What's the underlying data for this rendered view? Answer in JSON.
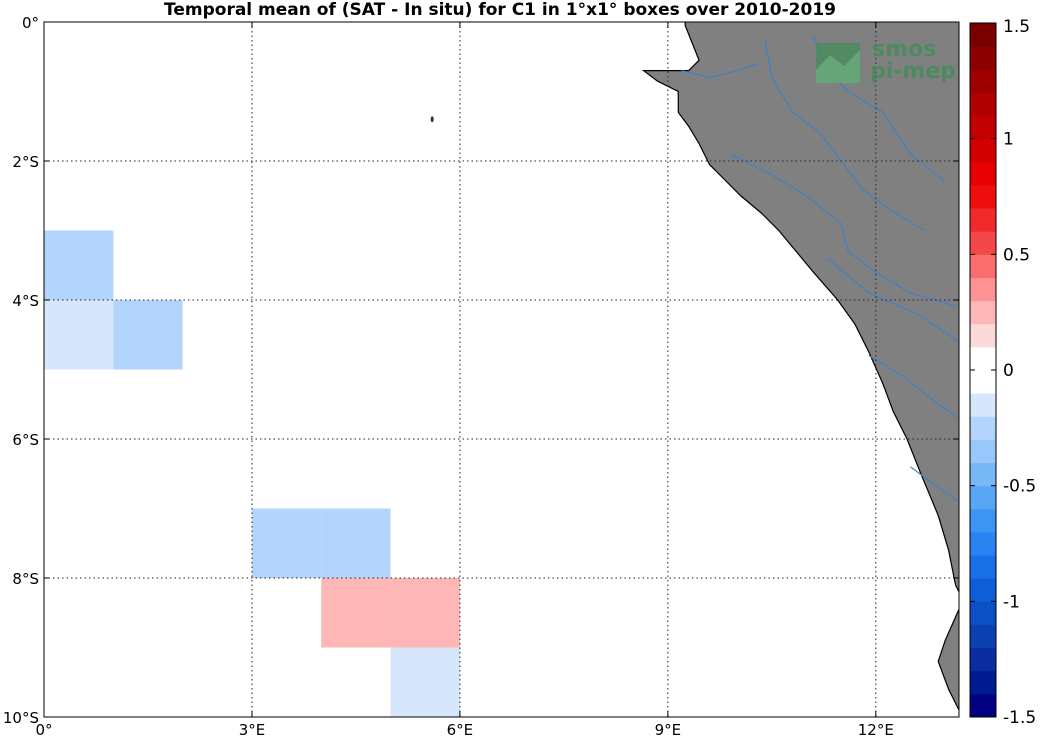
{
  "title": "Temporal mean of (SAT - In situ) for C1 in 1°x1° boxes over 2010-2019",
  "map": {
    "lon_range": [
      0,
      13.2
    ],
    "lat_range": [
      0,
      -10
    ],
    "x_tick_labels": [
      {
        "lon": 0,
        "label": "0°"
      },
      {
        "lon": 3,
        "label": "3°E"
      },
      {
        "lon": 6,
        "label": "6°E"
      },
      {
        "lon": 9,
        "label": "9°E"
      },
      {
        "lon": 12,
        "label": "12°E"
      }
    ],
    "y_tick_labels": [
      {
        "lat": 0,
        "label": "0°"
      },
      {
        "lat": -2,
        "label": "2°S"
      },
      {
        "lat": -4,
        "label": "4°S"
      },
      {
        "lat": -6,
        "label": "6°S"
      },
      {
        "lat": -8,
        "label": "8°S"
      },
      {
        "lat": -10,
        "label": "10°S"
      }
    ],
    "grid": "dotted",
    "land_color": "#808080",
    "river_color": "#3f80c8",
    "coastline": [
      [
        9.25,
        -0.05
      ],
      [
        9.35,
        -0.3
      ],
      [
        9.45,
        -0.55
      ],
      [
        9.3,
        -0.7
      ],
      [
        8.65,
        -0.7
      ],
      [
        8.85,
        -0.85
      ],
      [
        9.15,
        -1.0
      ],
      [
        9.15,
        -1.3
      ],
      [
        9.3,
        -1.5
      ],
      [
        9.45,
        -1.75
      ],
      [
        9.6,
        -2.05
      ],
      [
        9.8,
        -2.25
      ],
      [
        10.05,
        -2.5
      ],
      [
        10.35,
        -2.75
      ],
      [
        10.6,
        -3.0
      ],
      [
        10.85,
        -3.3
      ],
      [
        11.1,
        -3.6
      ],
      [
        11.45,
        -4.0
      ],
      [
        11.7,
        -4.35
      ],
      [
        11.9,
        -4.75
      ],
      [
        12.1,
        -5.2
      ],
      [
        12.25,
        -5.6
      ],
      [
        12.45,
        -6.0
      ],
      [
        12.65,
        -6.5
      ],
      [
        12.9,
        -7.1
      ],
      [
        13.05,
        -7.6
      ],
      [
        13.15,
        -8.1
      ],
      [
        13.2,
        -8.2
      ]
    ],
    "extra_land": [
      [
        13.2,
        -8.45
      ],
      [
        13.0,
        -8.9
      ],
      [
        12.9,
        -9.2
      ],
      [
        13.05,
        -9.6
      ],
      [
        13.2,
        -9.9
      ]
    ],
    "rivers": [
      [
        [
          10.4,
          -0.25
        ],
        [
          10.5,
          -0.8
        ],
        [
          10.8,
          -1.3
        ],
        [
          11.2,
          -1.6
        ],
        [
          11.5,
          -2.0
        ],
        [
          11.8,
          -2.4
        ],
        [
          12.2,
          -2.7
        ],
        [
          12.7,
          -3.0
        ]
      ],
      [
        [
          11.1,
          -0.2
        ],
        [
          11.3,
          -0.7
        ],
        [
          11.6,
          -1.0
        ],
        [
          12.1,
          -1.3
        ],
        [
          12.5,
          -1.9
        ],
        [
          13.0,
          -2.3
        ]
      ],
      [
        [
          9.9,
          -1.9
        ],
        [
          10.5,
          -2.2
        ],
        [
          11.0,
          -2.5
        ],
        [
          11.5,
          -2.9
        ],
        [
          11.6,
          -3.3
        ],
        [
          12.0,
          -3.6
        ],
        [
          12.5,
          -3.9
        ],
        [
          13.2,
          -4.1
        ]
      ],
      [
        [
          11.3,
          -3.4
        ],
        [
          11.9,
          -3.9
        ],
        [
          12.6,
          -4.2
        ],
        [
          13.2,
          -4.6
        ]
      ],
      [
        [
          11.9,
          -4.8
        ],
        [
          12.4,
          -5.1
        ],
        [
          12.9,
          -5.5
        ],
        [
          13.2,
          -5.7
        ]
      ],
      [
        [
          12.5,
          -6.4
        ],
        [
          12.9,
          -6.7
        ],
        [
          13.2,
          -6.9
        ]
      ],
      [
        [
          9.2,
          -0.7
        ],
        [
          9.6,
          -0.8
        ],
        [
          10.0,
          -0.7
        ],
        [
          10.3,
          -0.6
        ]
      ]
    ],
    "islands": [
      [
        5.6,
        -1.4
      ]
    ]
  },
  "boxes": [
    {
      "lon": 0,
      "lat": -3,
      "value": -0.2,
      "color": "#b3d4fc"
    },
    {
      "lon": 0,
      "lat": -4,
      "value": -0.1,
      "color": "#d7e7fb"
    },
    {
      "lon": 1,
      "lat": -4,
      "value": -0.2,
      "color": "#b3d4fc"
    },
    {
      "lon": 3,
      "lat": -7,
      "value": -0.2,
      "color": "#b3d4fc"
    },
    {
      "lon": 4,
      "lat": -7,
      "value": -0.2,
      "color": "#b3d4fc"
    },
    {
      "lon": 4,
      "lat": -8,
      "value": 0.3,
      "color": "#fdb7b7"
    },
    {
      "lon": 5,
      "lat": -8,
      "value": 0.3,
      "color": "#fdb7b7"
    },
    {
      "lon": 5,
      "lat": -9,
      "value": -0.1,
      "color": "#d7e7fb"
    }
  ],
  "colorbar": {
    "min": -1.5,
    "max": 1.5,
    "tick_labels": [
      {
        "value": 1.5,
        "label": "1.5"
      },
      {
        "value": 1,
        "label": "1"
      },
      {
        "value": 0.5,
        "label": "0.5"
      },
      {
        "value": 0,
        "label": "0"
      },
      {
        "value": -0.5,
        "label": "-0.5"
      },
      {
        "value": -1,
        "label": "-1"
      },
      {
        "value": -1.5,
        "label": "-1.5"
      }
    ],
    "colors": [
      "#000080",
      "#001a90",
      "#0a2ea0",
      "#0c3fb0",
      "#0d4fc5",
      "#0e5ed9",
      "#1770e6",
      "#2784f0",
      "#3c95f3",
      "#58a6f5",
      "#79b8f7",
      "#98c7f9",
      "#b3d4fc",
      "#d7e7fb",
      "#ffffff",
      "#ffffff",
      "#fddada",
      "#fdb7b7",
      "#fc9292",
      "#fa6e6e",
      "#f44848",
      "#f02a2a",
      "#ee0e0e",
      "#e60000",
      "#d40000",
      "#c20000",
      "#b00000",
      "#9e0000",
      "#8c0000",
      "#7a0000"
    ]
  },
  "logo": {
    "line1": "smos",
    "line2": "pi-mep",
    "color": "#3a8f55"
  }
}
